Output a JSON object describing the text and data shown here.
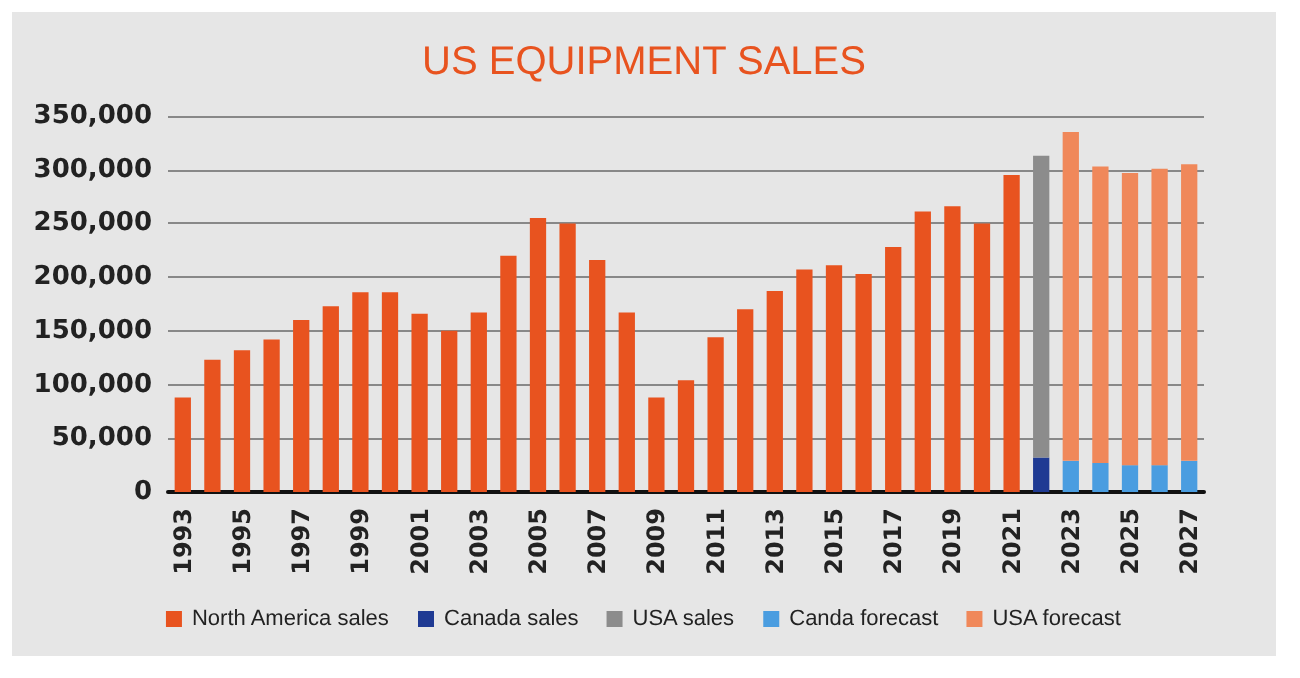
{
  "chart_data": {
    "type": "bar",
    "title": "US EQUIPMENT SALES",
    "stacked": true,
    "categories": [
      "1993",
      null,
      "1995",
      null,
      "1997",
      null,
      "1999",
      null,
      "2001",
      null,
      "2003",
      null,
      "2005",
      null,
      "2007",
      null,
      "2009",
      null,
      "2011",
      null,
      "2013",
      null,
      "2015",
      null,
      "2017",
      null,
      "2019",
      null,
      "2021",
      null,
      "2023",
      null,
      "2025",
      null,
      "2027"
    ],
    "series": [
      {
        "name": "North America sales",
        "color": "#e8531f",
        "values": [
          88000,
          123000,
          132000,
          142000,
          160000,
          173000,
          186000,
          186000,
          166000,
          150000,
          167000,
          220000,
          255000,
          250000,
          216000,
          167000,
          88000,
          104000,
          144000,
          170000,
          187000,
          207000,
          211000,
          203000,
          228000,
          261000,
          266000,
          250000,
          295000,
          null,
          null,
          null,
          null,
          null,
          null
        ]
      },
      {
        "name": "Canada sales",
        "color": "#1f3a93",
        "values": [
          null,
          null,
          null,
          null,
          null,
          null,
          null,
          null,
          null,
          null,
          null,
          null,
          null,
          null,
          null,
          null,
          null,
          null,
          null,
          null,
          null,
          null,
          null,
          null,
          null,
          null,
          null,
          null,
          null,
          32000,
          null,
          null,
          null,
          null,
          null
        ]
      },
      {
        "name": "USA sales",
        "color": "#8c8c8c",
        "values": [
          null,
          null,
          null,
          null,
          null,
          null,
          null,
          null,
          null,
          null,
          null,
          null,
          null,
          null,
          null,
          null,
          null,
          null,
          null,
          null,
          null,
          null,
          null,
          null,
          null,
          null,
          null,
          null,
          null,
          281000,
          null,
          null,
          null,
          null,
          null
        ]
      },
      {
        "name": "Canda forecast",
        "color": "#4a9de0",
        "values": [
          null,
          null,
          null,
          null,
          null,
          null,
          null,
          null,
          null,
          null,
          null,
          null,
          null,
          null,
          null,
          null,
          null,
          null,
          null,
          null,
          null,
          null,
          null,
          null,
          null,
          null,
          null,
          null,
          null,
          null,
          29000,
          27000,
          25000,
          25000,
          29000
        ]
      },
      {
        "name": "USA forecast",
        "color": "#f0885a",
        "values": [
          null,
          null,
          null,
          null,
          null,
          null,
          null,
          null,
          null,
          null,
          null,
          null,
          null,
          null,
          null,
          null,
          null,
          null,
          null,
          null,
          null,
          null,
          null,
          null,
          null,
          null,
          null,
          null,
          null,
          null,
          306000,
          276000,
          272000,
          276000,
          276000
        ]
      }
    ],
    "ylim": [
      0,
      350000
    ],
    "yticks": [
      {
        "value": 0,
        "label": "0"
      },
      {
        "value": 50000,
        "label": "50,000"
      },
      {
        "value": 100000,
        "label": "100,000"
      },
      {
        "value": 150000,
        "label": "150,000"
      },
      {
        "value": 200000,
        "label": "200,000"
      },
      {
        "value": 250000,
        "label": "250,000"
      },
      {
        "value": 300000,
        "label": "300,000"
      },
      {
        "value": 350000,
        "label": "350,000"
      }
    ],
    "grid": "y",
    "legend": "bottom"
  }
}
